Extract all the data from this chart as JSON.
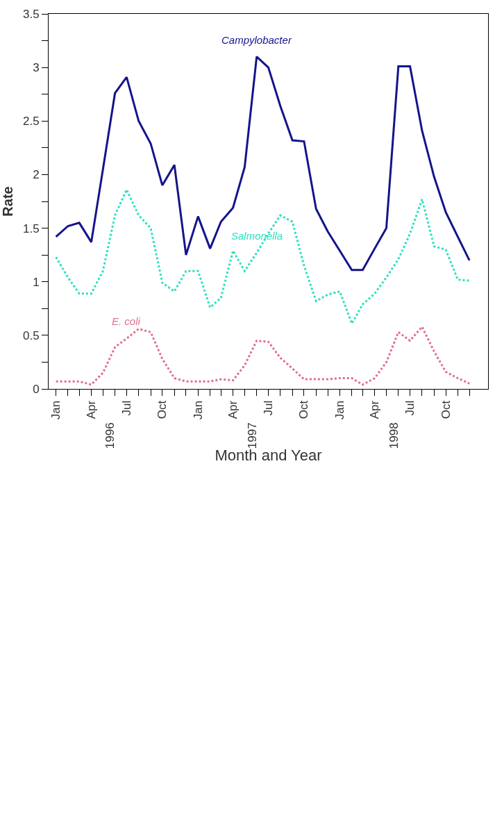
{
  "chart_data": {
    "type": "line",
    "xlabel": "Month and Year",
    "ylabel": "Rate",
    "x": [
      "1996-01",
      "1996-02",
      "1996-03",
      "1996-04",
      "1996-05",
      "1996-06",
      "1996-07",
      "1996-08",
      "1996-09",
      "1996-10",
      "1996-11",
      "1996-12",
      "1997-01",
      "1997-02",
      "1997-03",
      "1997-04",
      "1997-05",
      "1997-06",
      "1997-07",
      "1997-08",
      "1997-09",
      "1997-10",
      "1997-11",
      "1997-12",
      "1998-01",
      "1998-02",
      "1998-03",
      "1998-04",
      "1998-05",
      "1998-06",
      "1998-07",
      "1998-08",
      "1998-09",
      "1998-10",
      "1998-11",
      "1998-12"
    ],
    "series": [
      {
        "name": "Campylobacter",
        "color": "#14148c",
        "line_style": "solid",
        "values": [
          1.42,
          1.52,
          1.55,
          1.37,
          2.05,
          2.76,
          2.91,
          2.5,
          2.29,
          1.9,
          2.09,
          1.25,
          1.61,
          1.31,
          1.56,
          1.69,
          2.07,
          3.1,
          3.0,
          2.64,
          2.32,
          2.31,
          1.68,
          1.47,
          1.29,
          1.11,
          1.11,
          1.31,
          1.5,
          3.01,
          3.01,
          2.41,
          1.98,
          1.65,
          1.42,
          1.2
        ]
      },
      {
        "name": "Salmonella",
        "color": "#2ee0c0",
        "line_style": "dotted",
        "values": [
          1.23,
          1.04,
          0.89,
          0.89,
          1.1,
          1.62,
          1.86,
          1.62,
          1.5,
          0.99,
          0.91,
          1.1,
          1.1,
          0.76,
          0.85,
          1.29,
          1.1,
          1.27,
          1.45,
          1.62,
          1.56,
          1.15,
          0.82,
          0.88,
          0.91,
          0.61,
          0.79,
          0.89,
          1.04,
          1.21,
          1.45,
          1.77,
          1.33,
          1.3,
          1.02,
          1.01
        ]
      },
      {
        "name": "E. coli",
        "color": "#e0708c",
        "line_style": "dotted",
        "values": [
          0.07,
          0.07,
          0.07,
          0.04,
          0.15,
          0.39,
          0.47,
          0.56,
          0.53,
          0.28,
          0.1,
          0.07,
          0.07,
          0.07,
          0.09,
          0.08,
          0.22,
          0.45,
          0.44,
          0.29,
          0.19,
          0.09,
          0.09,
          0.09,
          0.1,
          0.1,
          0.04,
          0.1,
          0.25,
          0.53,
          0.45,
          0.58,
          0.35,
          0.16,
          0.1,
          0.05
        ]
      }
    ],
    "xlim": [
      "1995-12-13",
      "1999-01-18"
    ],
    "xticks": [
      {
        "value": "1996-01",
        "label": "Jan"
      },
      {
        "value": "1996-02",
        "label": null
      },
      {
        "value": "1996-03",
        "label": null
      },
      {
        "value": "1996-04",
        "label": "Apr"
      },
      {
        "value": "1996-05",
        "label": null
      },
      {
        "value": "1996-06",
        "label": null
      },
      {
        "value": "1996-07",
        "label": "Jul"
      },
      {
        "value": "1996-08",
        "label": null
      },
      {
        "value": "1996-09",
        "label": null
      },
      {
        "value": "1996-10",
        "label": "Oct"
      },
      {
        "value": "1996-11",
        "label": null
      },
      {
        "value": "1996-12",
        "label": null
      },
      {
        "value": "1997-01",
        "label": "Jan"
      },
      {
        "value": "1997-02",
        "label": null
      },
      {
        "value": "1997-03",
        "label": null
      },
      {
        "value": "1997-04",
        "label": "Apr"
      },
      {
        "value": "1997-05",
        "label": null
      },
      {
        "value": "1997-06",
        "label": null
      },
      {
        "value": "1997-07",
        "label": "Jul"
      },
      {
        "value": "1997-08",
        "label": null
      },
      {
        "value": "1997-09",
        "label": null
      },
      {
        "value": "1997-10",
        "label": "Oct"
      },
      {
        "value": "1997-11",
        "label": null
      },
      {
        "value": "1997-12",
        "label": null
      },
      {
        "value": "1998-01",
        "label": "Jan"
      },
      {
        "value": "1998-02",
        "label": null
      },
      {
        "value": "1998-03",
        "label": null
      },
      {
        "value": "1998-04",
        "label": "Apr"
      },
      {
        "value": "1998-05",
        "label": null
      },
      {
        "value": "1998-06",
        "label": null
      },
      {
        "value": "1998-07",
        "label": "Jul"
      },
      {
        "value": "1998-08",
        "label": null
      },
      {
        "value": "1998-09",
        "label": null
      },
      {
        "value": "1998-10",
        "label": "Oct"
      },
      {
        "value": "1998-11",
        "label": null
      },
      {
        "value": "1998-12",
        "label": null
      }
    ],
    "x2lim": [
      "1995-12-13",
      "1999-01-18"
    ],
    "x2ticks": [
      {
        "value": "1996-05-20",
        "label": "1996"
      },
      {
        "value": "1997-05-20",
        "label": "1997"
      },
      {
        "value": "1998-05-20",
        "label": "1998"
      }
    ],
    "ylim": [
      0,
      3.5
    ],
    "yticks": [
      0,
      {
        "value": 0.25,
        "label": null
      },
      0.5,
      {
        "value": 0.75,
        "label": null
      },
      1,
      {
        "value": 1.25,
        "label": null
      },
      1.5,
      {
        "value": 1.75,
        "label": null
      },
      2,
      {
        "value": 2.25,
        "label": null
      },
      2.5,
      {
        "value": 2.75,
        "label": null
      },
      3,
      {
        "value": 3.25,
        "label": null
      },
      3.5
    ],
    "grid": false,
    "marker": "none"
  }
}
